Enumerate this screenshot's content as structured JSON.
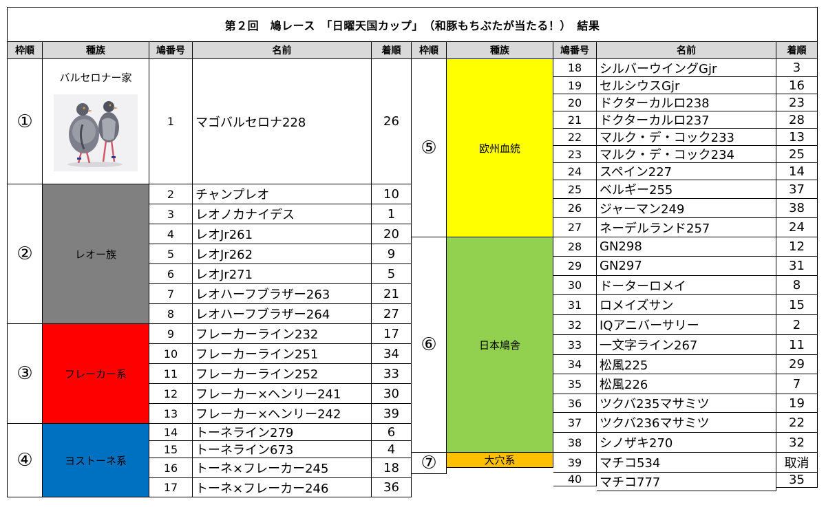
{
  "title": "第２回　鳩レース　「日曜天国カップ」　（和豚もちぶたが当たる！）　結果",
  "columns": [
    "枠順",
    "種族",
    "鳩番号",
    "名前",
    "着順"
  ],
  "left_groups": [
    {
      "frame": "①",
      "breed": "バルセロナー家",
      "color": "#ffffff",
      "has_photo": true,
      "photo_icon": "pigeon-photo",
      "rows": [
        {
          "num": "1",
          "name": "マゴバルセロナ228",
          "rank": "26"
        }
      ]
    },
    {
      "frame": "②",
      "breed": "レオー族",
      "color": "#808080",
      "rows": [
        {
          "num": "2",
          "name": "チャンプレオ",
          "rank": "10"
        },
        {
          "num": "3",
          "name": "レオノカナイデス",
          "rank": "1"
        },
        {
          "num": "4",
          "name": "レオJr261",
          "rank": "20"
        },
        {
          "num": "5",
          "name": "レオJr262",
          "rank": "9"
        },
        {
          "num": "6",
          "name": "レオJr271",
          "rank": "5"
        },
        {
          "num": "7",
          "name": "レオハーフブラザー263",
          "rank": "21"
        },
        {
          "num": "8",
          "name": "レオハーフブラザー264",
          "rank": "27"
        }
      ]
    },
    {
      "frame": "③",
      "breed": "フレーカー系",
      "color": "#ff0000",
      "rows": [
        {
          "num": "9",
          "name": "フレーカーライン232",
          "rank": "17"
        },
        {
          "num": "10",
          "name": "フレーカーライン251",
          "rank": "34"
        },
        {
          "num": "11",
          "name": "フレーカーライン252",
          "rank": "33"
        },
        {
          "num": "12",
          "name": "フレーカー×ヘンリー241",
          "rank": "30"
        },
        {
          "num": "13",
          "name": "フレーカー×ヘンリー242",
          "rank": "39"
        }
      ]
    },
    {
      "frame": "④",
      "breed": "ヨストーネ系",
      "color": "#0070c0",
      "rows": [
        {
          "num": "14",
          "name": "トーネライン279",
          "rank": "6"
        },
        {
          "num": "15",
          "name": "トーネライン673",
          "rank": "4"
        },
        {
          "num": "16",
          "name": "トーネ×フレーカー245",
          "rank": "18"
        },
        {
          "num": "17",
          "name": "トーネ×フレーカー246",
          "rank": "36"
        }
      ]
    }
  ],
  "right_groups": [
    {
      "frame": "⑤",
      "breed": "欧州血統",
      "color": "#ffff00",
      "rows": [
        {
          "num": "18",
          "name": "シルバーウイングGjr",
          "rank": "3"
        },
        {
          "num": "19",
          "name": "セルシウスGjr",
          "rank": "16"
        },
        {
          "num": "20",
          "name": "ドクターカルロ238",
          "rank": "23"
        },
        {
          "num": "21",
          "name": "ドクターカルロ237",
          "rank": "28"
        },
        {
          "num": "22",
          "name": "マルク・デ・コック233",
          "rank": "13"
        },
        {
          "num": "23",
          "name": "マルク・デ・コック234",
          "rank": "25"
        },
        {
          "num": "24",
          "name": "スペイン227",
          "rank": "14"
        },
        {
          "num": "25",
          "name": "ベルギー255",
          "rank": "37"
        },
        {
          "num": "26",
          "name": "ジャーマン249",
          "rank": "38"
        },
        {
          "num": "27",
          "name": "ネーデルランド257",
          "rank": "24"
        }
      ]
    },
    {
      "frame": "⑥",
      "breed": "日本鳩舎",
      "color": "#92d050",
      "rows": [
        {
          "num": "28",
          "name": "GN298",
          "rank": "12"
        },
        {
          "num": "29",
          "name": "GN297",
          "rank": "31"
        },
        {
          "num": "30",
          "name": "ドーターロメイ",
          "rank": "8"
        },
        {
          "num": "31",
          "name": "ロメイズサン",
          "rank": "15"
        },
        {
          "num": "32",
          "name": "IQアニバーサリー",
          "rank": "2"
        },
        {
          "num": "33",
          "name": "一文字ライン267",
          "rank": "11"
        },
        {
          "num": "34",
          "name": "松風225",
          "rank": "29"
        },
        {
          "num": "35",
          "name": "松風226",
          "rank": "7"
        },
        {
          "num": "36",
          "name": "ツクバ235マサミツ",
          "rank": "19"
        },
        {
          "num": "37",
          "name": "ツクバ236マサミツ",
          "rank": "22"
        },
        {
          "num": "38",
          "name": "シノザキ270",
          "rank": "32"
        }
      ]
    },
    {
      "frame": "⑦",
      "breed": "大穴系",
      "color": "#ffc000",
      "rows": [
        {
          "num": "39",
          "name": "マチコ534",
          "rank": "取消"
        },
        {
          "num": "40",
          "name": "マチコ777",
          "rank": "35"
        }
      ]
    }
  ]
}
